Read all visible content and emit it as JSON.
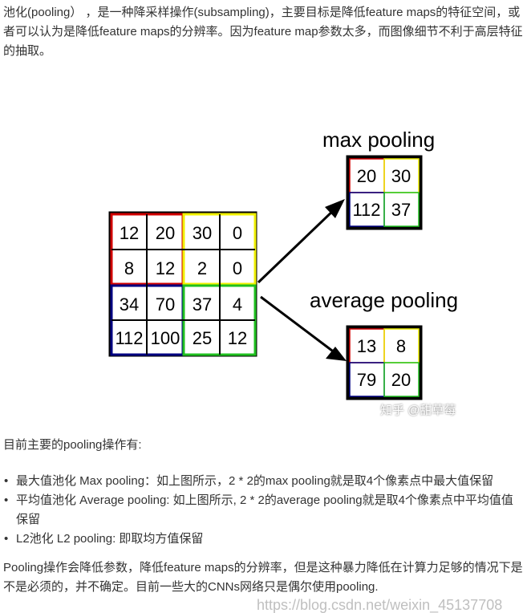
{
  "intro": "池化(pooling） ，是一种降采样操作(subsampling)，主要目标是降低feature maps的特征空间，或者可以认为是降低feature maps的分辨率。因为feature map参数太多，而图像细节不利于高层特征的抽取。",
  "figure": {
    "input_grid": [
      [
        "12",
        "20",
        "30",
        "0"
      ],
      [
        "8",
        "12",
        "2",
        "0"
      ],
      [
        "34",
        "70",
        "37",
        "4"
      ],
      [
        "112",
        "100",
        "25",
        "12"
      ]
    ],
    "max_title": "max pooling",
    "max_grid": [
      [
        "20",
        "30"
      ],
      [
        "112",
        "37"
      ]
    ],
    "avg_title": "average pooling",
    "avg_grid": [
      [
        "13",
        "8"
      ],
      [
        "79",
        "20"
      ]
    ],
    "quadrant_colors": {
      "top_left": "#d00000",
      "top_right": "#f0f000",
      "bottom_left": "#000080",
      "bottom_right": "#20c020"
    },
    "watermark": "知乎 @甜草莓"
  },
  "lead": "目前主要的pooling操作有:",
  "bullets": [
    "最大值池化 Max pooling：如上图所示，2 * 2的max pooling就是取4个像素点中最大值保留",
    "平均值池化 Average pooling: 如上图所示, 2 * 2的average pooling就是取4个像素点中平均值值保留",
    "L2池化 L2 pooling: 即取均方值保留"
  ],
  "closing": "Pooling操作会降低参数，降低feature maps的分辨率，但是这种暴力降低在计算力足够的情况下是不是必须的，并不确定。目前一些大的CNNs网络只是偶尔使用pooling.",
  "page_watermark": "https://blog.csdn.net/weixin_45137708"
}
